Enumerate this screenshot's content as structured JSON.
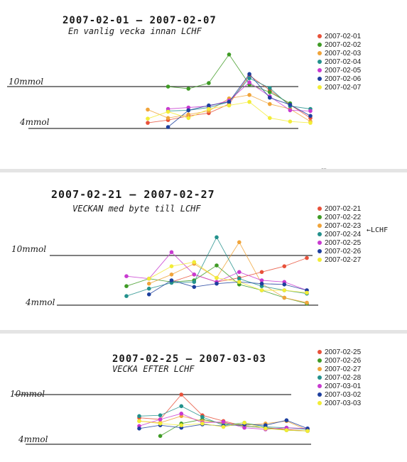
{
  "colors": [
    "#e8513a",
    "#3f9b25",
    "#f0a43a",
    "#23918c",
    "#c83ad0",
    "#1d3f9e",
    "#f2ec36"
  ],
  "charts": [
    {
      "title": "2007-02-01 — 2007-02-07",
      "subtitle": "En vanlig vecka innan LCHF",
      "ref_high": "10mmol",
      "ref_low": "4mmol",
      "small_mark": "an",
      "annotation": "",
      "legend": [
        "2007-02-01",
        "2007-02-02",
        "2007-02-03",
        "2007-02-04",
        "2007-02-05",
        "2007-02-06",
        "2007-02-07"
      ]
    },
    {
      "title": "2007-02-21 — 2007-02-27",
      "subtitle": "VECKAN med byte till LCHF",
      "ref_high": "10mmol",
      "ref_low": "4mmol",
      "small_mark": "",
      "annotation": "←LCHF",
      "legend": [
        "2007-02-21",
        "2007-02-22",
        "2007-02-23",
        "2007-02-24",
        "2007-02-25",
        "2007-02-26",
        "2007-02-27"
      ]
    },
    {
      "title": "2007-02-25 — 2007-03-03",
      "subtitle": "VECKA EFTER LCHF",
      "ref_high": "10mmol",
      "ref_low": "4mmol",
      "small_mark": "",
      "annotation": "",
      "legend": [
        "2007-02-25",
        "2007-02-26",
        "2007-02-27",
        "2007-02-28",
        "2007-03-01",
        "2007-03-02",
        "2007-03-03"
      ]
    }
  ],
  "chart_data": [
    {
      "type": "line",
      "y_unit": "mmol",
      "series": [
        {
          "name": "2007-02-01",
          "values": [
            4.8,
            5.2,
            5.8,
            6.2,
            7.5,
            11.6,
            9.5,
            7.4,
            5.5
          ]
        },
        {
          "name": "2007-02-02",
          "values": [
            null,
            10.0,
            9.7,
            10.5,
            14.6,
            10.3,
            9.2,
            7.6,
            null
          ]
        },
        {
          "name": "2007-02-03",
          "values": [
            6.7,
            5.5,
            6.0,
            6.5,
            8.3,
            8.8,
            7.5,
            6.8,
            5.0
          ]
        },
        {
          "name": "2007-02-04",
          "values": [
            null,
            6.5,
            6.6,
            7.0,
            7.8,
            11.2,
            9.8,
            7.2,
            6.8
          ]
        },
        {
          "name": "2007-02-05",
          "values": [
            null,
            6.8,
            7.0,
            7.2,
            8.0,
            10.6,
            8.6,
            6.6,
            6.5
          ]
        },
        {
          "name": "2007-02-06",
          "values": [
            null,
            4.2,
            6.6,
            7.3,
            7.8,
            11.8,
            8.4,
            7.4,
            5.8
          ]
        },
        {
          "name": "2007-02-07",
          "values": [
            5.4,
            6.4,
            5.5,
            6.8,
            7.3,
            7.8,
            5.5,
            5.0,
            4.8
          ]
        }
      ]
    },
    {
      "type": "line",
      "y_unit": "mmol",
      "series": [
        {
          "name": "2007-02-21",
          "values": [
            null,
            null,
            6.8,
            7.7,
            6.8,
            7.3,
            8.0,
            8.7,
            9.7
          ]
        },
        {
          "name": "2007-02-22",
          "values": [
            6.3,
            7.2,
            6.8,
            7.0,
            8.8,
            6.5,
            5.8,
            4.9,
            4.2
          ]
        },
        {
          "name": "2007-02-23",
          "values": [
            null,
            6.6,
            7.7,
            9.0,
            7.3,
            11.6,
            6.6,
            4.9,
            4.3
          ]
        },
        {
          "name": "2007-02-24",
          "values": [
            5.1,
            6.0,
            6.7,
            6.8,
            12.2,
            7.2,
            6.3,
            5.8,
            5.4
          ]
        },
        {
          "name": "2007-02-25",
          "values": [
            7.5,
            7.2,
            10.4,
            7.7,
            6.8,
            8.0,
            7.0,
            6.8,
            5.8
          ]
        },
        {
          "name": "2007-02-26",
          "values": [
            null,
            5.3,
            7.0,
            6.2,
            6.6,
            6.8,
            6.6,
            6.5,
            5.8
          ]
        },
        {
          "name": "2007-02-27",
          "values": [
            null,
            7.2,
            8.7,
            9.2,
            7.3,
            6.8,
            5.8,
            5.8,
            5.5
          ]
        }
      ]
    },
    {
      "type": "line",
      "y_unit": "mmol",
      "series": [
        {
          "name": "2007-02-25",
          "values": [
            7.2,
            7.0,
            10.0,
            7.5,
            6.8,
            6.2,
            6.0,
            5.8,
            5.6
          ]
        },
        {
          "name": "2007-02-26",
          "values": [
            null,
            5.0,
            6.5,
            7.0,
            6.5,
            6.2,
            6.0,
            5.7,
            5.6
          ]
        },
        {
          "name": "2007-02-27",
          "values": [
            6.8,
            6.6,
            7.4,
            6.8,
            6.6,
            6.3,
            6.5,
            6.8,
            5.7
          ]
        },
        {
          "name": "2007-02-28",
          "values": [
            7.4,
            7.5,
            8.6,
            7.3,
            6.3,
            6.6,
            6.1,
            6.0,
            5.8
          ]
        },
        {
          "name": "2007-03-01",
          "values": [
            6.2,
            7.0,
            7.7,
            6.6,
            6.7,
            6.0,
            5.8,
            6.0,
            5.9
          ]
        },
        {
          "name": "2007-03-02",
          "values": [
            5.9,
            6.3,
            6.0,
            6.4,
            6.2,
            6.4,
            6.3,
            6.9,
            5.9
          ]
        },
        {
          "name": "2007-03-03",
          "values": [
            6.8,
            6.5,
            6.3,
            6.5,
            6.1,
            6.6,
            5.9,
            5.7,
            5.6
          ]
        }
      ]
    }
  ]
}
